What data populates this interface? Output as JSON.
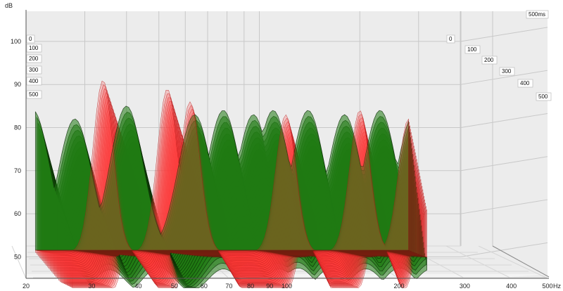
{
  "chart_data": {
    "type": "waterfall",
    "ylabel": "dB",
    "xunit": "Hz",
    "x_tick_labels": [
      "20",
      "30",
      "40",
      "50",
      "60",
      "70",
      "80",
      "90",
      "100",
      "200",
      "300",
      "400",
      "500"
    ],
    "x_ticks_hz": [
      20,
      30,
      40,
      50,
      60,
      70,
      80,
      90,
      100,
      200,
      300,
      400,
      500
    ],
    "y_tick_labels": [
      "50",
      "60",
      "70",
      "80",
      "90",
      "100"
    ],
    "y_ticks_db": [
      50,
      60,
      70,
      80,
      90,
      100
    ],
    "ylim": [
      45,
      107
    ],
    "xlim": [
      20,
      500
    ],
    "time_axis_label": "500ms",
    "time_labels_left": [
      "0",
      "100",
      "200",
      "300",
      "400",
      "500"
    ],
    "time_labels_right": [
      "0",
      "100",
      "200",
      "300",
      "400",
      "500"
    ],
    "time_slices_ms": [
      0,
      500
    ],
    "series": [
      {
        "kind": "decay",
        "peaks": [
          {
            "freq_hz": 21,
            "level_db": 84
          },
          {
            "freq_hz": 28,
            "level_db": 82
          },
          {
            "freq_hz": 40,
            "level_db": 85
          },
          {
            "freq_hz": 64,
            "level_db": 83
          },
          {
            "freq_hz": 78,
            "level_db": 84
          },
          {
            "freq_hz": 96,
            "level_db": 83
          },
          {
            "freq_hz": 110,
            "level_db": 84
          },
          {
            "freq_hz": 140,
            "level_db": 84
          },
          {
            "freq_hz": 180,
            "level_db": 83
          },
          {
            "freq_hz": 230,
            "level_db": 84
          },
          {
            "freq_hz": 290,
            "level_db": 83
          }
        ]
      },
      {
        "kind": "resonance",
        "peaks": [
          {
            "freq_hz": 34,
            "level_db": 91
          },
          {
            "freq_hz": 53,
            "level_db": 89
          },
          {
            "freq_hz": 62,
            "level_db": 86
          },
          {
            "freq_hz": 120,
            "level_db": 83
          },
          {
            "freq_hz": 200,
            "level_db": 84
          },
          {
            "freq_hz": 280,
            "level_db": 82
          }
        ]
      }
    ],
    "colors": {
      "background": "#ffffff",
      "back_wall": "#ececec",
      "grid": "#c8c8c8",
      "floor_grid": "#d6d6d6",
      "decay_fill": "#1f7a12",
      "decay_line": "#0a2a05",
      "resonance_fill": "#ff3b3b",
      "resonance_line": "#b51515"
    },
    "grid": true
  }
}
